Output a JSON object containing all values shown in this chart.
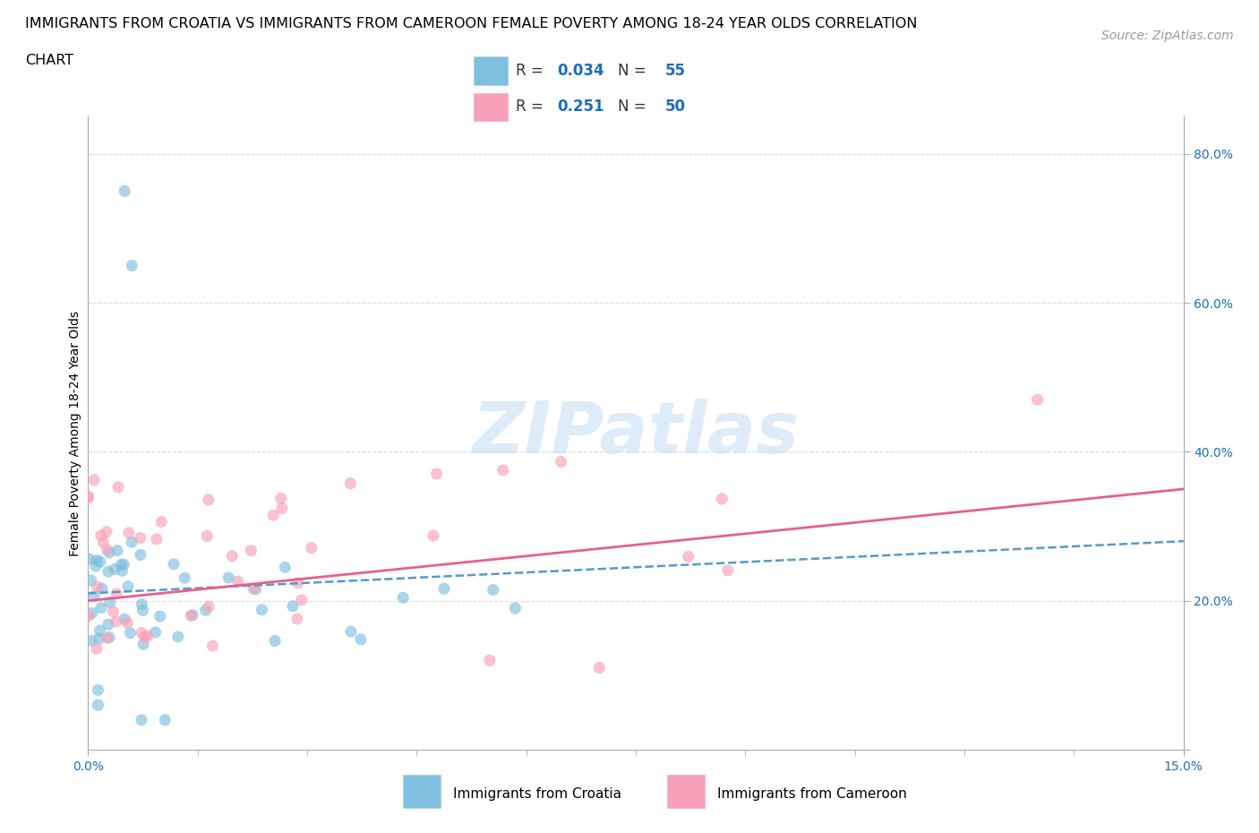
{
  "title_line1": "IMMIGRANTS FROM CROATIA VS IMMIGRANTS FROM CAMEROON FEMALE POVERTY AMONG 18-24 YEAR OLDS CORRELATION",
  "title_line2": "CHART",
  "source": "Source: ZipAtlas.com",
  "ylabel": "Female Poverty Among 18-24 Year Olds",
  "xlim": [
    0.0,
    0.15
  ],
  "ylim": [
    0.0,
    0.85
  ],
  "croatia_color": "#7fbfdf",
  "cameroon_color": "#f8a0b8",
  "croatia_R": 0.034,
  "croatia_N": 55,
  "cameroon_R": 0.251,
  "cameroon_N": 50,
  "croatia_line_color": "#5599cc",
  "cameroon_line_color": "#e8608a",
  "watermark_color": "#c8dff5",
  "legend_blue": "#1a6fbd",
  "legend_text_black": "#333333",
  "grid_color": "#dddddd",
  "title_fontsize": 11.5,
  "source_fontsize": 10,
  "ylabel_fontsize": 10,
  "tick_fontsize": 10,
  "legend_fontsize": 12
}
